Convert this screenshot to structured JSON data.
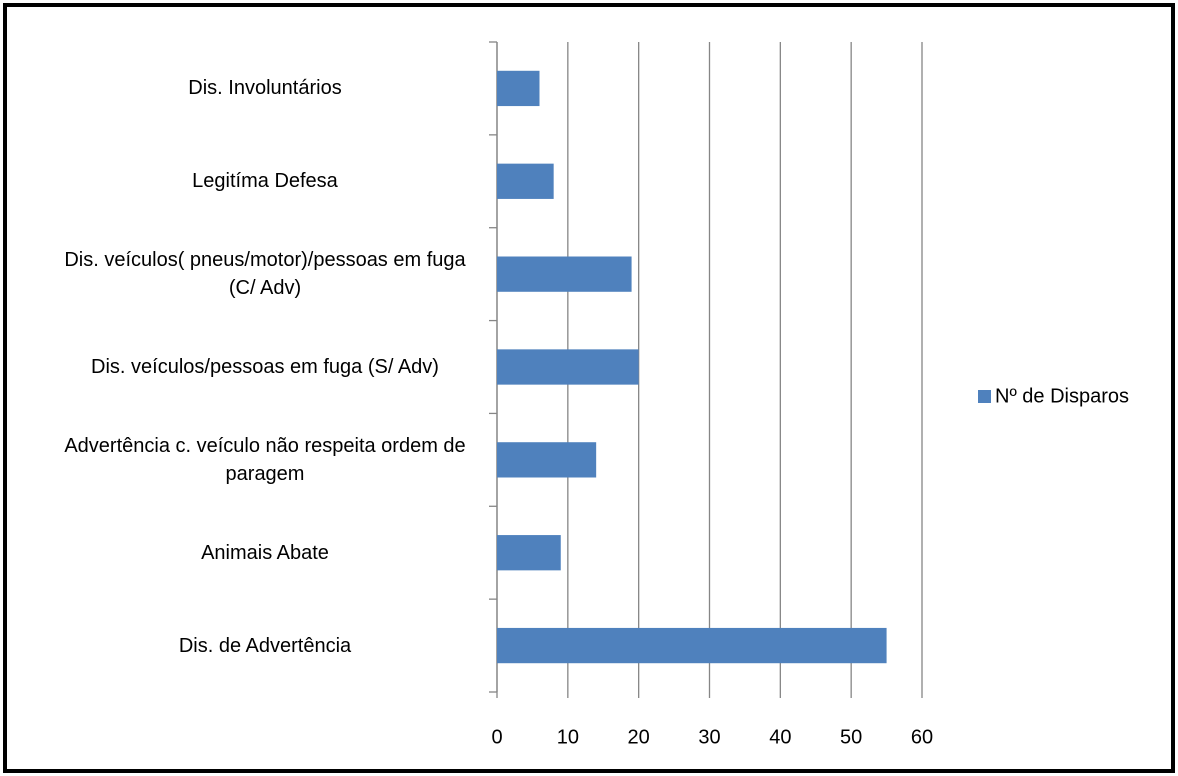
{
  "chart_data": {
    "type": "bar",
    "orientation": "horizontal",
    "categories": [
      "Dis. de Advertência",
      "Animais Abate",
      "Advertência c. veículo não respeita ordem de paragem",
      "Dis. veículos/pessoas em fuga (S/ Adv)",
      "Dis. veículos( pneus/motor)/pessoas em fuga (C/ Adv)",
      "Legitíma Defesa",
      "Dis. Involuntários"
    ],
    "series": [
      {
        "name": "Nº de Disparos",
        "color": "#4f81bd",
        "values": [
          55,
          9,
          14,
          20,
          19,
          8,
          6
        ]
      }
    ],
    "xlim": [
      0,
      60
    ],
    "xticks": [
      0,
      10,
      20,
      30,
      40,
      50,
      60
    ],
    "grid": true,
    "legend": "right"
  }
}
